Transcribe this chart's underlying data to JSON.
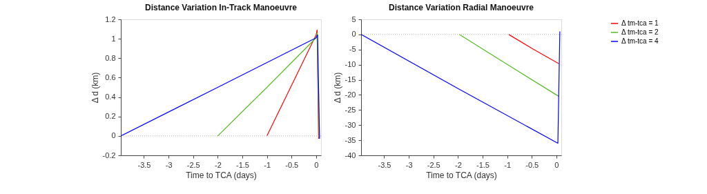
{
  "chart_data": [
    {
      "type": "line",
      "title": "Distance Variation In-Track Manoeuvre",
      "xlabel": "Time to TCA (days)",
      "ylabel": "Δ d (km)",
      "xlim": [
        -3.97,
        0.1
      ],
      "ylim": [
        -0.2,
        1.2
      ],
      "xticks": [
        -3.5,
        -3,
        -2.5,
        -2,
        -1.5,
        -1,
        -0.5,
        0
      ],
      "yticks": [
        -0.2,
        0,
        0.2,
        0.4,
        0.6,
        0.8,
        1,
        1.2
      ],
      "grid": false,
      "legend": "right",
      "line_style": "solid",
      "marker": "none",
      "series": [
        {
          "name": "Δ tm-tca = 1",
          "color": "#ff0000",
          "x": [
            -1,
            -0.5,
            0,
            0.02,
            0.05
          ],
          "values": [
            0,
            0.52,
            1.04,
            1.09,
            -0.03
          ]
        },
        {
          "name": "Δ tm-tca = 2",
          "color": "#55bb22",
          "x": [
            -2,
            -1,
            0,
            0.02,
            0.06
          ],
          "values": [
            0,
            0.5,
            1.01,
            1.06,
            -0.02
          ]
        },
        {
          "name": "Δ tm-tca = 4",
          "color": "#0000ff",
          "x": [
            -3.97,
            -2,
            0,
            0.03,
            0.07
          ],
          "values": [
            0,
            0.5,
            1.01,
            1.04,
            -0.03
          ]
        }
      ],
      "ref_lines": [
        {
          "axis": "y",
          "value": 0,
          "label": null,
          "color": "#999999",
          "line_style": "dotted"
        }
      ]
    },
    {
      "type": "line",
      "title": "Distance Variation Radial Manoeuvre",
      "xlabel": "Time to TCA (days)",
      "ylabel": "Δ d (km)",
      "xlim": [
        -3.97,
        0.1
      ],
      "ylim": [
        -40,
        5
      ],
      "xticks": [
        -3.5,
        -3,
        -2.5,
        -2,
        -1.5,
        -1,
        -0.5,
        0
      ],
      "yticks": [
        -40,
        -35,
        -30,
        -25,
        -20,
        -15,
        -10,
        -5,
        0,
        5
      ],
      "grid": false,
      "legend": "right",
      "line_style": "solid",
      "marker": "none",
      "series": [
        {
          "name": "Δ tm-tca = 1",
          "color": "#ff0000",
          "x": [
            -0.97,
            -0.5,
            0.05
          ],
          "values": [
            0,
            -4.6,
            -9.7
          ]
        },
        {
          "name": "Δ tm-tca = 2",
          "color": "#55bb22",
          "x": [
            -1.97,
            -1,
            0.05
          ],
          "values": [
            0,
            -9.9,
            -20.5
          ]
        },
        {
          "name": "Δ tm-tca = 4",
          "color": "#0000ff",
          "x": [
            -3.97,
            -2,
            0.03,
            0.07
          ],
          "values": [
            0,
            -17.9,
            -36,
            1
          ]
        }
      ],
      "ref_lines": [
        {
          "axis": "y",
          "value": 0,
          "label": null,
          "color": "#999999",
          "line_style": "dotted"
        }
      ]
    }
  ]
}
